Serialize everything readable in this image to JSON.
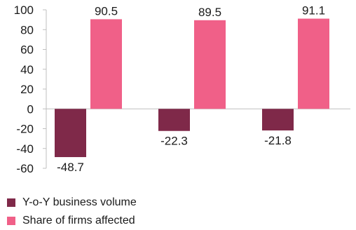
{
  "chart_data": {
    "type": "bar",
    "categories": [
      "",
      "",
      ""
    ],
    "series": [
      {
        "name": "Y-o-Y business volume",
        "values": [
          -48.7,
          -22.3,
          -21.8
        ],
        "color": "#7f2949"
      },
      {
        "name": "Share of firms affected",
        "values": [
          90.5,
          89.5,
          91.1
        ],
        "color": "#f06088"
      }
    ],
    "data_labels": {
      "series0": [
        "-48.7",
        "-22.3",
        "-21.8"
      ],
      "series1": [
        "90.5",
        "89.5",
        "91.1"
      ]
    },
    "y_ticks": [
      "100",
      "80",
      "60",
      "40",
      "20",
      "0",
      "-20",
      "-40",
      "-60"
    ],
    "ylim": [
      -60,
      100
    ],
    "title": "",
    "xlabel": "",
    "ylabel": "",
    "grid": false,
    "legend_position": "bottom-left"
  }
}
